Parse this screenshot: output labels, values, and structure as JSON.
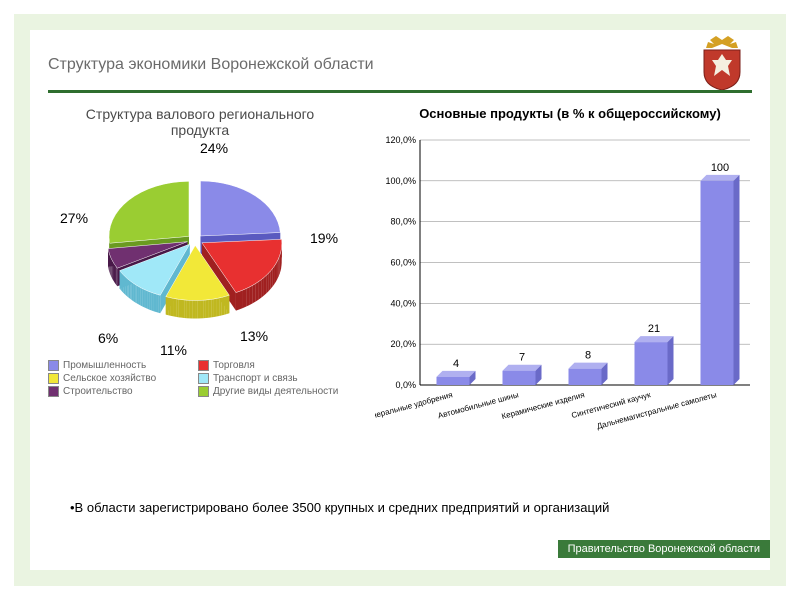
{
  "page": {
    "title": "Структура экономики Воронежской области",
    "footnote": "•В области зарегистрировано более 3500 крупных и средних предприятий и организаций",
    "gov_label": "Правительство Воронежской области",
    "background_outer": "#ffffff",
    "background_frame": "#eaf4e1",
    "background_inner": "#ffffff",
    "rule_color": "#2f6e2f",
    "emblem_colors": {
      "shield": "#c0392b",
      "crown": "#d4a024",
      "figure": "#f5f0e0"
    }
  },
  "pie_chart": {
    "type": "pie",
    "title": "Структура валового регионального продукта",
    "title_fontsize": 14,
    "title_color": "#4a4a4a",
    "label_fontsize": 14,
    "label_color": "#000000",
    "slices": [
      {
        "name": "Промышленность",
        "value": 24,
        "label": "24%",
        "color": "#8a8ae8",
        "dark": "#5a5ac0"
      },
      {
        "name": "Торговля",
        "value": 19,
        "label": "19%",
        "color": "#e83030",
        "dark": "#a02020"
      },
      {
        "name": "Сельское хозяйство",
        "value": 13,
        "label": "13%",
        "color": "#f2e838",
        "dark": "#c0b820"
      },
      {
        "name": "Транспорт и связь",
        "value": 11,
        "label": "11%",
        "color": "#a0e8f8",
        "dark": "#60b8d0"
      },
      {
        "name": "Строительство",
        "value": 6,
        "label": "6%",
        "color": "#703070",
        "dark": "#481848"
      },
      {
        "name": "Другие виды деятельности",
        "value": 27,
        "label": "27%",
        "color": "#9acd32",
        "dark": "#6a9a20"
      }
    ],
    "legend_fontsize": 10,
    "legend_color": "#666666",
    "explode": 8
  },
  "bar_chart": {
    "type": "bar",
    "title": "Основные продукты (в % к общероссийскому)",
    "title_fontsize": 13,
    "title_color": "#000000",
    "categories": [
      "Минеральные удобрения",
      "Автомобильные шины",
      "Керамические изделия",
      "Синтетический каучук",
      "Дальнемагистральные самолеты"
    ],
    "values": [
      4,
      7,
      8,
      21,
      100
    ],
    "value_labels": [
      "4",
      "7",
      "8",
      "21",
      "100"
    ],
    "bar_color": "#8a8ae8",
    "bar_color_top": "#b0b0f0",
    "grid_color": "#808080",
    "axis_color": "#000000",
    "ylim": [
      0,
      120
    ],
    "ytick_step": 20,
    "yticks": [
      "0,0%",
      "20,0%",
      "40,0%",
      "60,0%",
      "80,0%",
      "100,0%",
      "120,0%"
    ],
    "label_fontsize": 9,
    "bar_width": 0.5,
    "xlabel_fontsize": 8,
    "xlabel_rotation": -15
  }
}
